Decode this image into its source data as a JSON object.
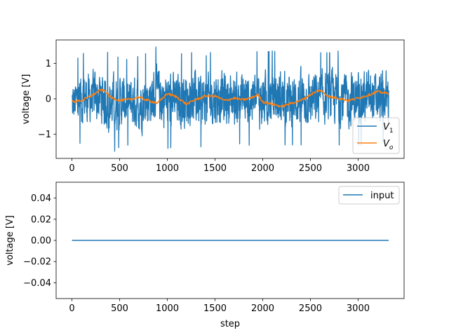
{
  "chart_data": [
    {
      "type": "line",
      "xlabel": "",
      "ylabel": "voltage [V]",
      "xlim": [
        -166,
        3482
      ],
      "ylim": [
        -1.68,
        1.66
      ],
      "xticks": [
        0,
        500,
        1000,
        1500,
        2000,
        2500,
        3000
      ],
      "yticks": [
        -1,
        0,
        1
      ],
      "grid": false,
      "legend": {
        "position": "lower-right",
        "entries": [
          "V_1",
          "V_o"
        ]
      },
      "series": [
        {
          "name": "V_1",
          "label_main": "V",
          "label_sub": "1",
          "color": "#1f77b4",
          "description": "noisy signal, roughly uniform noise between about -1.6 and 1.5",
          "x_range": [
            0,
            3320
          ],
          "x": [
            0,
            100,
            200,
            300,
            400,
            500,
            600,
            700,
            800,
            900,
            1000,
            1100,
            1200,
            1300,
            1400,
            1500,
            1600,
            1700,
            1800,
            1900,
            2000,
            2100,
            2200,
            2300,
            2400,
            2500,
            2600,
            2700,
            2800,
            2900,
            3000,
            3100,
            3200,
            3320
          ],
          "y_max": [
            0.9,
            1.3,
            1.2,
            1.35,
            1.3,
            1.15,
            1.1,
            1.2,
            1.3,
            1.5,
            1.3,
            1.25,
            1.3,
            1.3,
            1.2,
            1.4,
            1.35,
            1.25,
            1.3,
            1.35,
            1.3,
            1.35,
            1.3,
            1.1,
            1.35,
            1.2,
            1.3,
            1.3,
            1.35,
            1.3,
            1.3,
            1.35,
            1.25,
            1.3
          ],
          "y_min": [
            -1.3,
            -1.25,
            -1.2,
            -1.3,
            -1.6,
            -1.35,
            -1.3,
            -1.5,
            -1.25,
            -1.3,
            -1.4,
            -1.35,
            -1.3,
            -1.3,
            -1.4,
            -1.3,
            -1.3,
            -1.3,
            -1.25,
            -1.35,
            -1.4,
            -1.3,
            -1.3,
            -1.3,
            -1.3,
            -1.3,
            -1.3,
            -1.2,
            -1.3,
            -1.4,
            -1.3,
            -1.3,
            -1.25,
            -1.2
          ]
        },
        {
          "name": "V_o",
          "label_main": "V",
          "label_sub": "o",
          "color": "#ff7f0e",
          "x": [
            0,
            100,
            200,
            300,
            350,
            400,
            500,
            600,
            700,
            800,
            900,
            1000,
            1100,
            1200,
            1300,
            1400,
            1500,
            1600,
            1700,
            1800,
            1900,
            1950,
            2000,
            2100,
            2200,
            2300,
            2400,
            2500,
            2600,
            2700,
            2800,
            2900,
            3000,
            3100,
            3200,
            3320
          ],
          "y": [
            -0.08,
            -0.05,
            0.08,
            0.25,
            0.22,
            0.05,
            -0.05,
            -0.02,
            0.05,
            -0.05,
            -0.12,
            0.15,
            0.05,
            -0.15,
            -0.02,
            0.08,
            0.08,
            -0.05,
            0.02,
            -0.03,
            0.05,
            0.12,
            -0.08,
            -0.15,
            -0.22,
            -0.12,
            -0.05,
            0.12,
            0.25,
            0.05,
            0.02,
            -0.05,
            0.02,
            0.1,
            0.2,
            0.15
          ]
        }
      ]
    },
    {
      "type": "line",
      "xlabel": "step",
      "ylabel": "voltage [V]",
      "xlim": [
        -166,
        3482
      ],
      "ylim": [
        -0.055,
        0.055
      ],
      "xticks": [
        0,
        500,
        1000,
        1500,
        2000,
        2500,
        3000
      ],
      "yticks": [
        -0.04,
        -0.02,
        0.0,
        0.02,
        0.04
      ],
      "ytick_labels": [
        "−0.04",
        "−0.02",
        "0.00",
        "0.02",
        "0.04"
      ],
      "grid": false,
      "legend": {
        "position": "upper-right",
        "entries": [
          "input"
        ]
      },
      "series": [
        {
          "name": "input",
          "color": "#1f77b4",
          "x": [
            0,
            3320
          ],
          "y": [
            0,
            0
          ]
        }
      ]
    }
  ]
}
